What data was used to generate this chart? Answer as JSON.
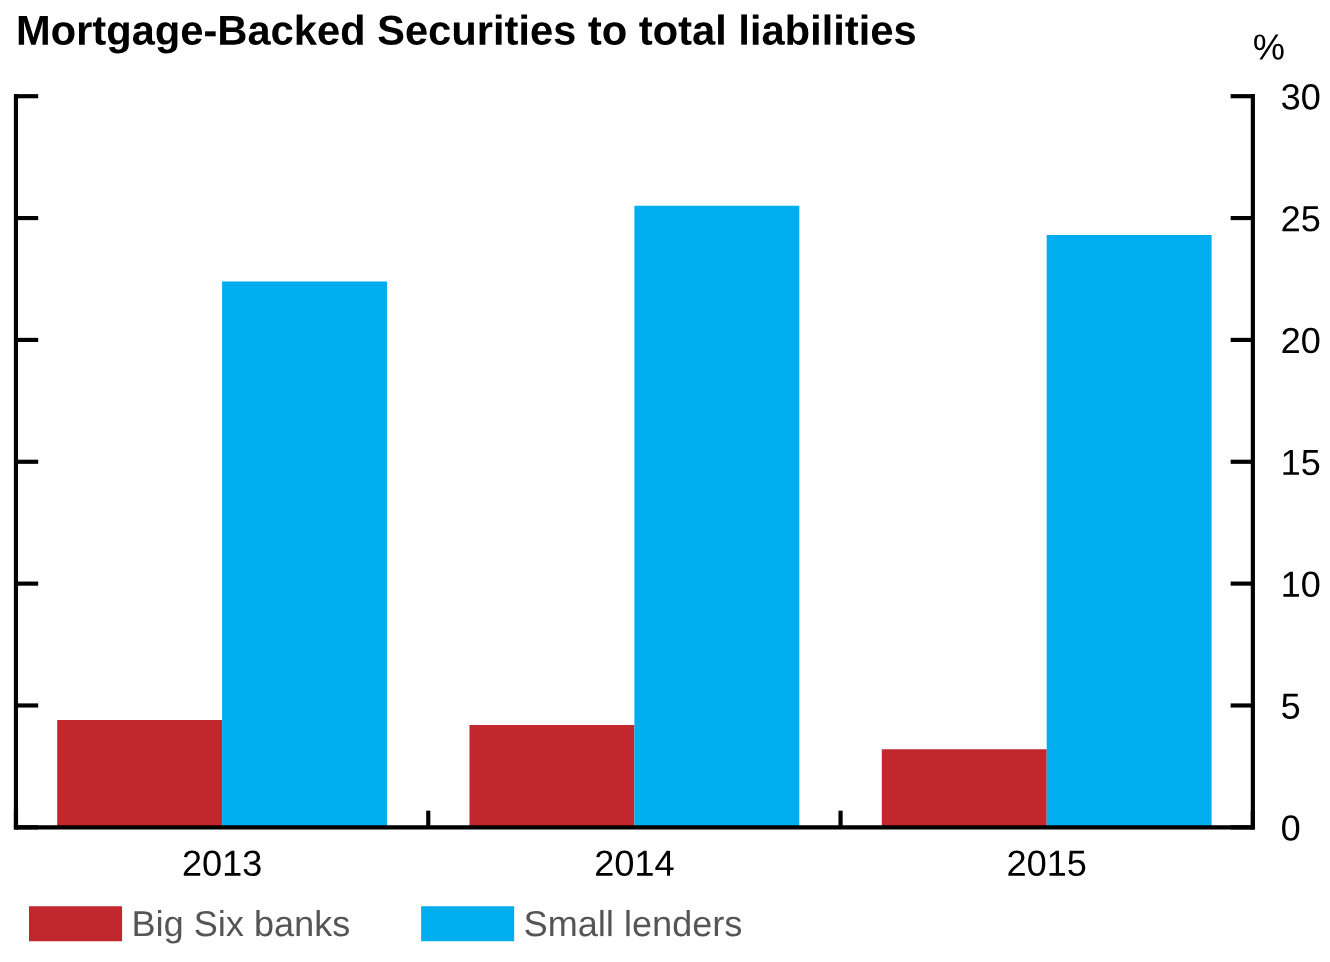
{
  "chart_data": {
    "type": "bar",
    "title": "Mortgage-Backed Securities to total liabilities",
    "ylabel": "%",
    "categories": [
      "2013",
      "2014",
      "2015"
    ],
    "series": [
      {
        "name": "Big Six banks",
        "color": "#c1272d",
        "values": [
          4.4,
          4.2,
          3.2
        ]
      },
      {
        "name": "Small lenders",
        "color": "#00aeef",
        "values": [
          22.4,
          25.5,
          24.3
        ]
      }
    ],
    "ylim": [
      0,
      30
    ],
    "yticks": [
      0,
      5,
      10,
      15,
      20,
      25,
      30
    ],
    "grid": false,
    "legend": "bottom left"
  }
}
